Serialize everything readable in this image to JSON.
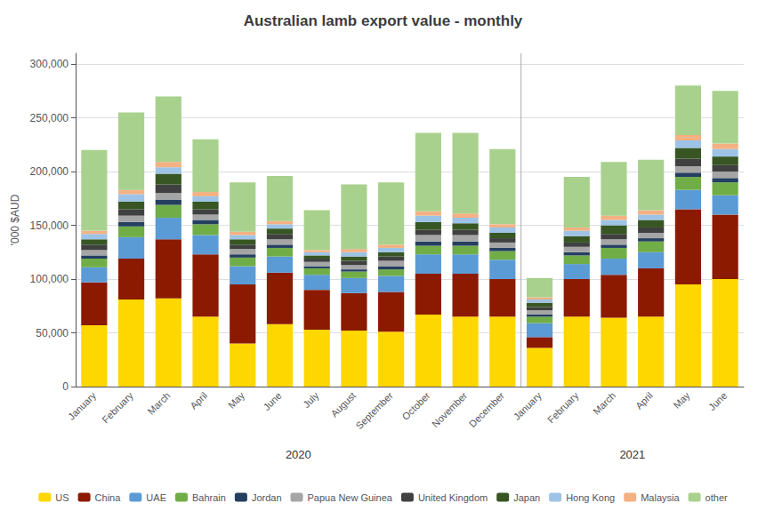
{
  "chart_data": {
    "type": "bar",
    "title": "Australian lamb export value - monthly",
    "ylabel": "'000 $AUD",
    "categories": [
      "January",
      "February",
      "March",
      "April",
      "May",
      "June",
      "July",
      "August",
      "September",
      "October",
      "November",
      "December",
      "January",
      "February",
      "March",
      "April",
      "May",
      "June"
    ],
    "groups": [
      {
        "label": "2020",
        "categories": [
          "January",
          "February",
          "March",
          "April",
          "May",
          "June",
          "July",
          "August",
          "September",
          "October",
          "November",
          "December"
        ]
      },
      {
        "label": "2021",
        "categories": [
          "January",
          "February",
          "March",
          "April",
          "May",
          "June"
        ]
      }
    ],
    "series": [
      {
        "name": "US",
        "color": "#FFD700",
        "values": [
          57000,
          81000,
          82000,
          65000,
          40000,
          58000,
          53000,
          52000,
          51000,
          67000,
          65000,
          65000,
          36000,
          65000,
          64000,
          65000,
          95000,
          100000
        ]
      },
      {
        "name": "China",
        "color": "#8B1A00",
        "values": [
          40000,
          38000,
          55000,
          58000,
          55000,
          48000,
          37000,
          35000,
          37000,
          38000,
          40000,
          35000,
          10000,
          35000,
          40000,
          45000,
          70000,
          60000
        ]
      },
      {
        "name": "UAE",
        "color": "#5B9BD5",
        "values": [
          14000,
          20000,
          20000,
          18000,
          17000,
          15000,
          14000,
          14000,
          15000,
          18000,
          18000,
          18000,
          13000,
          14000,
          15000,
          15000,
          18000,
          18000
        ]
      },
      {
        "name": "Bahrain",
        "color": "#70AD47",
        "values": [
          8000,
          10000,
          12000,
          10000,
          8000,
          8000,
          6000,
          6000,
          6000,
          8000,
          8000,
          8000,
          6000,
          8000,
          10000,
          10000,
          12000,
          12000
        ]
      },
      {
        "name": "Jordan",
        "color": "#243F60",
        "values": [
          3000,
          4000,
          5000,
          4000,
          3000,
          3000,
          2000,
          2000,
          3000,
          4000,
          4000,
          3000,
          2000,
          3000,
          3000,
          3000,
          4000,
          4000
        ]
      },
      {
        "name": "Papua New Guinea",
        "color": "#A5A5A5",
        "values": [
          5000,
          6000,
          6000,
          5000,
          5000,
          5000,
          4000,
          4000,
          5000,
          6000,
          6000,
          5000,
          4000,
          5000,
          5000,
          5000,
          6000,
          6000
        ]
      },
      {
        "name": "United Kingdom",
        "color": "#404040",
        "values": [
          5000,
          6000,
          8000,
          5000,
          4000,
          5000,
          3000,
          4000,
          4000,
          5000,
          5000,
          4000,
          3000,
          4000,
          5000,
          5000,
          7000,
          6000
        ]
      },
      {
        "name": "Japan",
        "color": "#375623",
        "values": [
          5000,
          7000,
          10000,
          7000,
          5000,
          5000,
          3000,
          4000,
          4000,
          7000,
          6000,
          5000,
          4000,
          6000,
          8000,
          7000,
          10000,
          8000
        ]
      },
      {
        "name": "Hong Kong",
        "color": "#9DC3E6",
        "values": [
          5000,
          7000,
          6000,
          5000,
          4000,
          4000,
          3000,
          4000,
          4000,
          6000,
          5000,
          5000,
          3000,
          5000,
          5000,
          5000,
          7000,
          7000
        ]
      },
      {
        "name": "Malaysia",
        "color": "#F4B183",
        "values": [
          3000,
          4000,
          5000,
          4000,
          3000,
          3000,
          2000,
          3000,
          3000,
          4000,
          4000,
          3000,
          2000,
          3000,
          4000,
          4000,
          5000,
          5000
        ]
      },
      {
        "name": "other",
        "color": "#A9D18E",
        "values": [
          75000,
          72000,
          61000,
          49000,
          46000,
          42000,
          37000,
          60000,
          58000,
          73000,
          75000,
          70000,
          18000,
          47000,
          50000,
          47000,
          46000,
          49000
        ]
      }
    ],
    "ylim": [
      0,
      310000
    ],
    "yticks": [
      0,
      {
        "value": 50000,
        "label": "50,000"
      },
      {
        "value": 100000,
        "label": "100,000"
      },
      {
        "value": 150000,
        "label": "150,000"
      },
      {
        "value": 200000,
        "label": "200,000"
      },
      {
        "value": 250000,
        "label": "250,000"
      },
      {
        "value": 300000,
        "label": "300,000"
      }
    ],
    "stacked": true,
    "grid": true,
    "legend": "bottom"
  }
}
